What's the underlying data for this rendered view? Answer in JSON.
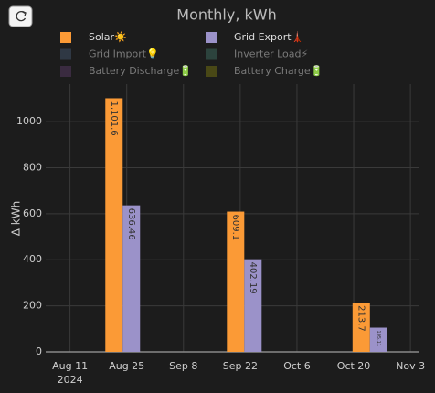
{
  "chart_data": {
    "type": "bar",
    "title": "Monthly, kWh",
    "y_label": "Δ kWh",
    "x": [
      "2024-08-24",
      "2024-09-23",
      "2024-10-24"
    ],
    "xlim": [
      "2024-08-05",
      "2024-11-05"
    ],
    "xticks": [
      {
        "value": "2024-08-11",
        "label": "Aug 11\n2024"
      },
      {
        "value": "2024-08-25",
        "label": "Aug 25"
      },
      {
        "value": "2024-09-08",
        "label": "Sep 8"
      },
      {
        "value": "2024-09-22",
        "label": "Sep 22"
      },
      {
        "value": "2024-10-06",
        "label": "Oct 6"
      },
      {
        "value": "2024-10-20",
        "label": "Oct 20"
      },
      {
        "value": "2024-11-03",
        "label": "Nov 3"
      }
    ],
    "ylim": [
      0,
      1163
    ],
    "yticks": [
      0,
      200,
      400,
      600,
      800,
      1000
    ],
    "grid": true,
    "series": [
      {
        "name": "Solar☀️",
        "color": "#fb9a36",
        "values": [
          1101.6,
          609.1,
          213.7
        ],
        "value_labels": [
          "1,101.6",
          "609.1",
          "213.7"
        ],
        "visible": true
      },
      {
        "name": "Grid Export🗼",
        "color": "#9b92c9",
        "values": [
          636.46,
          402.19,
          105.11
        ],
        "visible": true
      },
      {
        "name": "Grid Import💡",
        "color": "#3f5166",
        "visible": false
      },
      {
        "name": "Inverter Load⚡",
        "color": "#3b6559",
        "visible": false
      },
      {
        "name": "Battery Discharge🔋",
        "color": "#54385f",
        "visible": false
      },
      {
        "name": "Battery Charge🔋",
        "color": "#6f6e12",
        "visible": false
      }
    ]
  }
}
